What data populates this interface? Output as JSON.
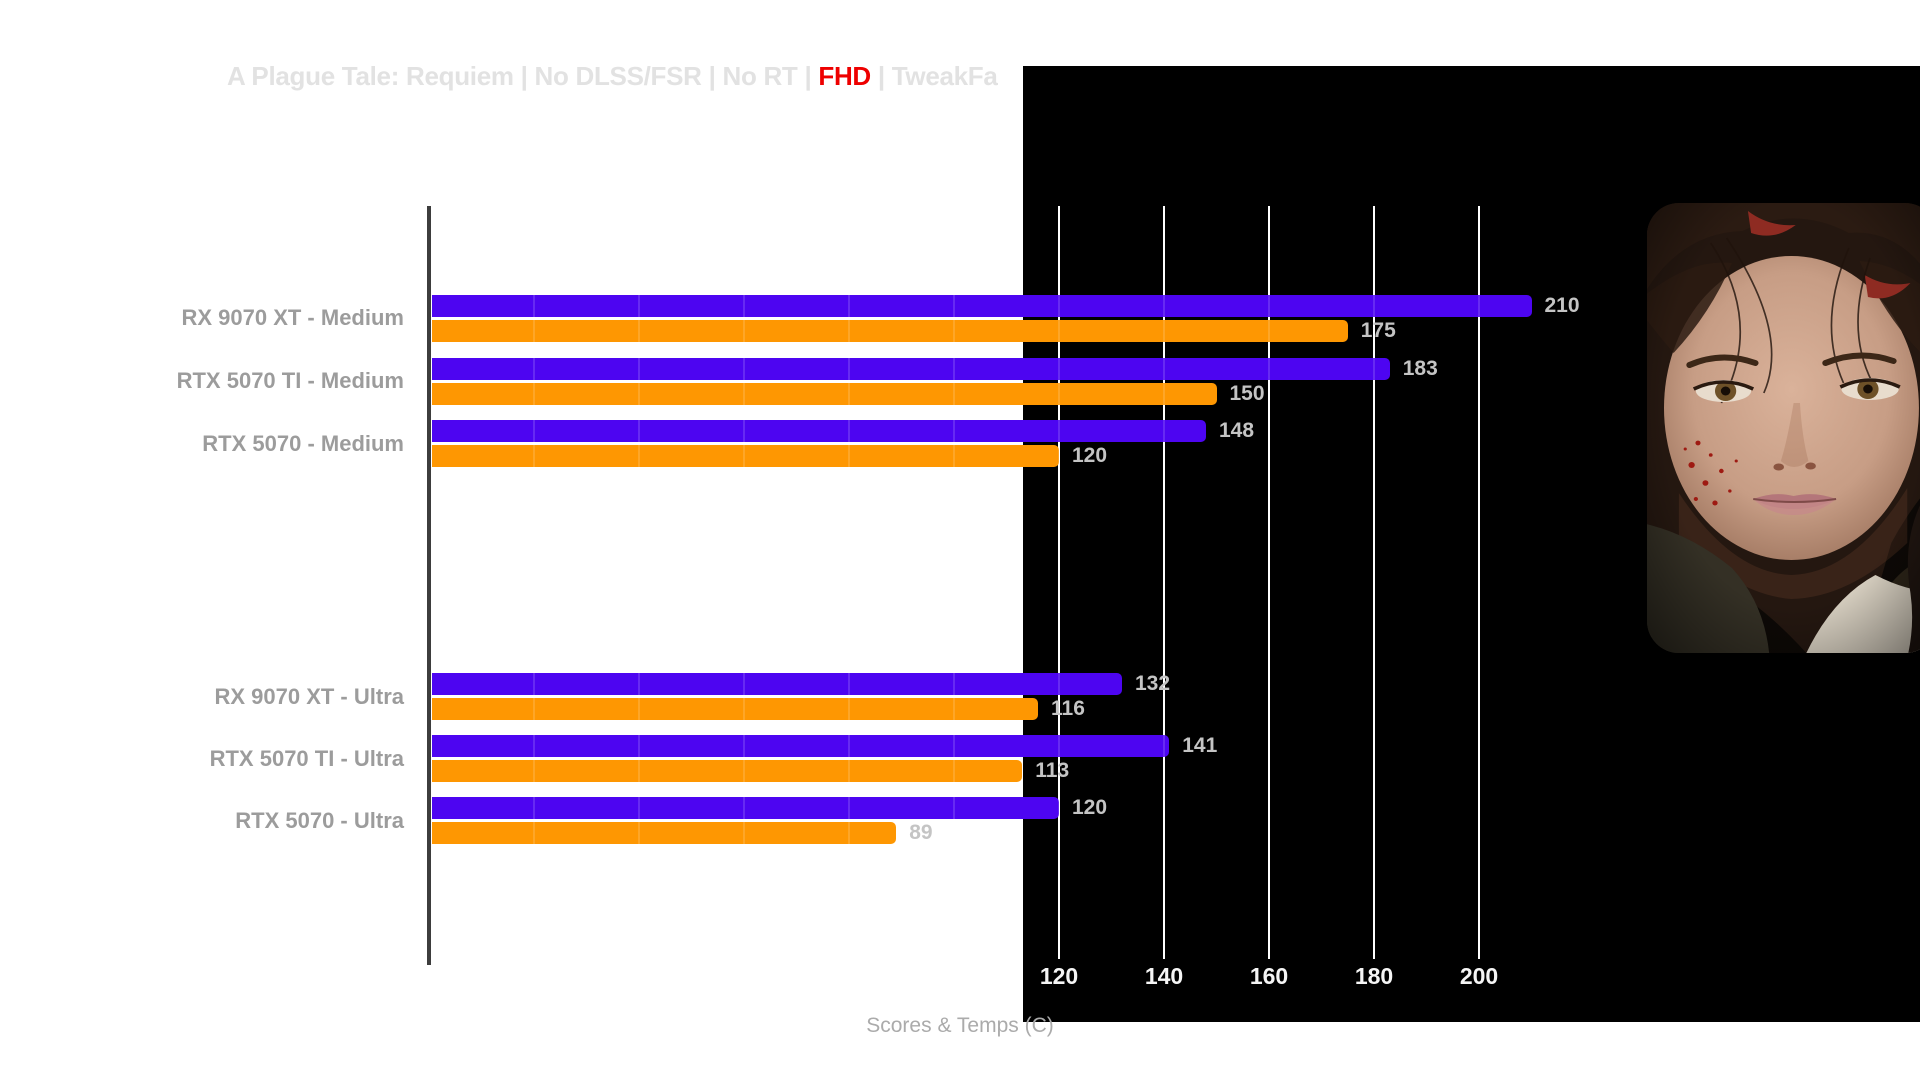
{
  "title": {
    "prefix": "A Plague Tale: Requiem | No DLSS/FSR | No RT |",
    "highlight": "FHD",
    "suffix": "| TweakFa"
  },
  "chart_data": {
    "type": "bar",
    "orientation": "horizontal",
    "title": "A Plague Tale: Requiem | No DLSS/FSR | No RT | FHD | TweakFa",
    "categories": [
      "RX 9070 XT - Medium",
      "RTX 5070 TI - Medium",
      "RTX 5070 - Medium",
      "RX 9070 XT - Ultra",
      "RTX 5070 TI - Ultra",
      "RTX 5070 - Ultra"
    ],
    "series": [
      {
        "name": "purple-series",
        "color": "#4D05F1",
        "values": [
          210,
          183,
          148,
          132,
          141,
          120
        ]
      },
      {
        "name": "orange-series",
        "color": "#FE9702",
        "values": [
          175,
          150,
          120,
          116,
          113,
          89
        ]
      }
    ],
    "xlabel": "Scores & Temps (C)",
    "x_ticks": [
      120,
      140,
      160,
      180,
      200
    ],
    "xlim": [
      0,
      202
    ],
    "gridline_step": 20,
    "grid": true,
    "legend_position": "none",
    "value_labels": true
  },
  "colors": {
    "background": "#ffffff",
    "panel": "#000000",
    "gridline": "#ffffff",
    "axis_line": "#3d3d3d",
    "title_text": "#e2e2e2",
    "title_highlight": "#ee0000",
    "category_label": "#9c9c9c",
    "value_label": "#c4c4c4",
    "tick_label": "#f5f5f5",
    "axis_title": "#ababab"
  }
}
